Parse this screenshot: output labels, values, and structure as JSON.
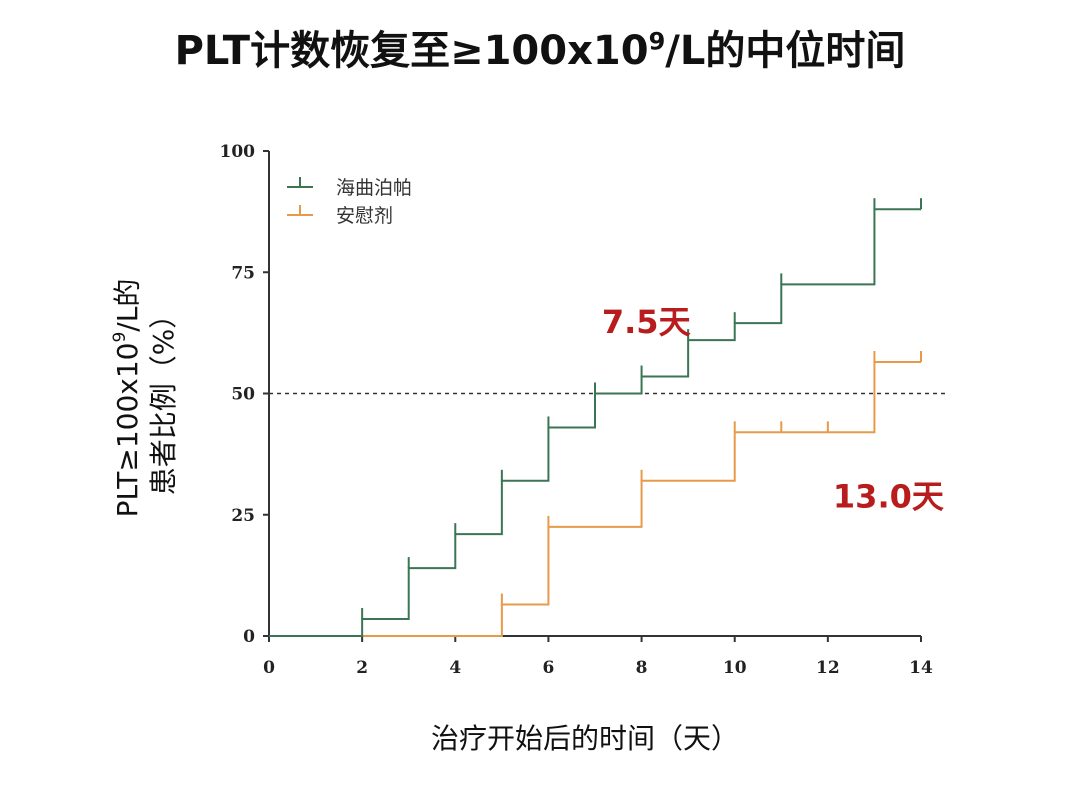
{
  "title_main": "PLT计数恢复至≥100x10",
  "title_sup": "9",
  "title_tail": "/L的中位时间",
  "chart_data": {
    "type": "line",
    "step": true,
    "xlabel": "治疗开始后的时间（天）",
    "ylabel_line1_main": "PLT≥100x10",
    "ylabel_line1_sup": "9",
    "ylabel_line1_tail": "/L的",
    "ylabel_line2": "患者比例（%）",
    "xlim": [
      0,
      14
    ],
    "ylim": [
      0,
      100
    ],
    "x_ticks": [
      "0",
      "2",
      "4",
      "6",
      "8",
      "10",
      "12",
      "14"
    ],
    "y_ticks": [
      "0",
      "25",
      "50",
      "75",
      "100"
    ],
    "reference_line_y": 50,
    "legend_position": "top-left",
    "series": [
      {
        "name": "海曲泊帕",
        "color": "#3b7553",
        "x": [
          0,
          2,
          3,
          4,
          5,
          6,
          7,
          8,
          9,
          10,
          11,
          13,
          14
        ],
        "y": [
          0,
          3.5,
          14,
          21,
          32,
          43,
          50,
          53.5,
          61,
          64.5,
          72.5,
          88,
          88
        ],
        "censor_x": [
          2,
          3,
          4,
          5,
          6,
          7,
          8,
          9,
          10,
          11,
          13,
          14
        ]
      },
      {
        "name": "安慰剂",
        "color": "#e89a4b",
        "x": [
          0,
          5,
          6,
          8,
          10,
          13,
          14
        ],
        "y": [
          0,
          6.5,
          22.5,
          32,
          42,
          56.5,
          56.5
        ],
        "censor_x": [
          5,
          6,
          8,
          10,
          11,
          12,
          13,
          14
        ]
      }
    ],
    "annotations": [
      {
        "text": "7.5天",
        "x": 8.1,
        "y": 65
      },
      {
        "text": "13.0天",
        "x": 13.3,
        "y": 29
      }
    ]
  }
}
